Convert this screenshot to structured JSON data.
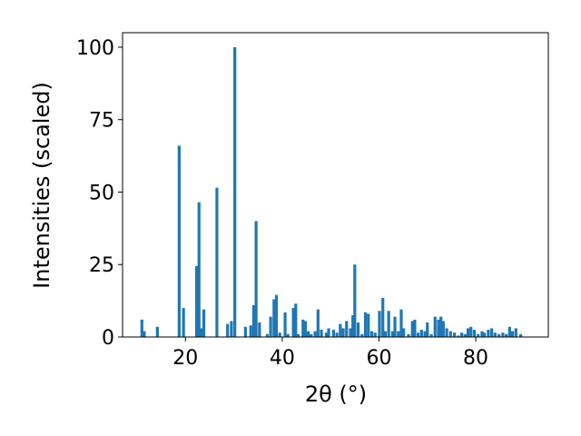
{
  "chart_data": {
    "type": "bar",
    "title": "",
    "xlabel": "2θ (°)",
    "ylabel": "Intensities (scaled)",
    "xlim": [
      7,
      95
    ],
    "ylim": [
      0,
      105
    ],
    "xticks": [
      20,
      40,
      60,
      80
    ],
    "yticks": [
      0,
      25,
      50,
      75,
      100
    ],
    "bar_width": 0.6,
    "color": "#1f77b4",
    "grid": false,
    "legend": "none",
    "x": [
      11.0,
      11.5,
      14.2,
      18.7,
      19.6,
      22.3,
      22.8,
      23.3,
      23.8,
      26.5,
      28.7,
      29.5,
      30.2,
      32.4,
      33.5,
      34.1,
      34.6,
      35.3,
      36.9,
      37.6,
      38.3,
      38.8,
      39.5,
      40.6,
      41.2,
      42.3,
      42.8,
      43.3,
      44.3,
      44.8,
      45.4,
      46.0,
      46.8,
      47.4,
      48.1,
      49.1,
      49.6,
      50.6,
      51.3,
      52.0,
      52.6,
      53.3,
      54.1,
      54.6,
      55.0,
      55.7,
      56.5,
      57.2,
      57.8,
      58.5,
      59.2,
      60.1,
      60.8,
      61.3,
      62.0,
      62.8,
      63.3,
      64.0,
      64.6,
      65.1,
      66.1,
      66.9,
      67.4,
      68.1,
      68.8,
      69.5,
      70.0,
      70.8,
      71.6,
      72.3,
      72.8,
      73.3,
      74.0,
      74.8,
      75.6,
      76.4,
      77.1,
      77.8,
      78.4,
      79.0,
      79.7,
      80.5,
      81.3,
      81.8,
      82.6,
      83.3,
      84.0,
      84.8,
      85.6,
      86.3,
      87.0,
      87.6,
      88.3,
      89.3
    ],
    "values": [
      6,
      2,
      3.5,
      66,
      10,
      24.5,
      46.5,
      3,
      9.5,
      51.5,
      4.5,
      5.5,
      100,
      3.5,
      4,
      11,
      40,
      5,
      1,
      7,
      13,
      14.5,
      1.5,
      8.5,
      1,
      10,
      11.5,
      1,
      6,
      5.5,
      2,
      1,
      2,
      9.5,
      2.5,
      1.5,
      3,
      2.5,
      1.5,
      4.5,
      3,
      5.5,
      3,
      7.5,
      25,
      5,
      1,
      8.5,
      8,
      2,
      1.5,
      9,
      13.5,
      2,
      9,
      2,
      7,
      2,
      9.5,
      3,
      1,
      5.5,
      6,
      1.5,
      2.5,
      2,
      5,
      1,
      7,
      6,
      7,
      5.5,
      3,
      2,
      1.5,
      0.5,
      1.5,
      1,
      3,
      3.5,
      2.5,
      1,
      2,
      1.5,
      2.5,
      3,
      1.5,
      1,
      1.5,
      1,
      3.5,
      2,
      3,
      1
    ]
  }
}
